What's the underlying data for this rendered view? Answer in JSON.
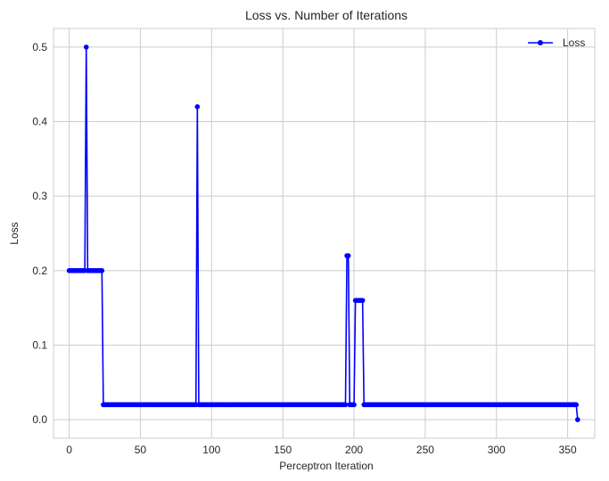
{
  "chart_data": {
    "type": "line",
    "title": "Loss vs. Number of Iterations",
    "xlabel": "Perceptron Iteration",
    "ylabel": "Loss",
    "xlim": [
      -11,
      369
    ],
    "ylim": [
      -0.025,
      0.525
    ],
    "xticks": [
      0,
      50,
      100,
      150,
      200,
      250,
      300,
      350
    ],
    "yticks": [
      0.0,
      0.1,
      0.2,
      0.3,
      0.4,
      0.5
    ],
    "ytick_labels": [
      "0.0",
      "0.1",
      "0.2",
      "0.3",
      "0.4",
      "0.5"
    ],
    "grid": true,
    "legend": {
      "position": "top-right",
      "entries": [
        "Loss"
      ]
    },
    "series": [
      {
        "name": "Loss",
        "color": "#0000ff",
        "marker": "circle",
        "runs": [
          {
            "from": 0,
            "to": 11,
            "value": 0.2
          },
          {
            "from": 12,
            "to": 12,
            "value": 0.5
          },
          {
            "from": 13,
            "to": 23,
            "value": 0.2
          },
          {
            "from": 24,
            "to": 89,
            "value": 0.02
          },
          {
            "from": 90,
            "to": 90,
            "value": 0.42
          },
          {
            "from": 91,
            "to": 194,
            "value": 0.02
          },
          {
            "from": 195,
            "to": 196,
            "value": 0.22
          },
          {
            "from": 197,
            "to": 200,
            "value": 0.02
          },
          {
            "from": 201,
            "to": 206,
            "value": 0.16
          },
          {
            "from": 207,
            "to": 356,
            "value": 0.02
          },
          {
            "from": 357,
            "to": 357,
            "value": 0.0
          }
        ]
      }
    ]
  }
}
